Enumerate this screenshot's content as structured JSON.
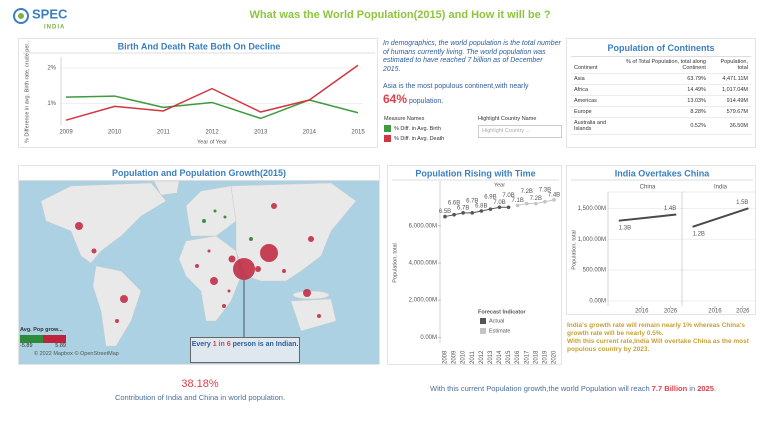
{
  "header": {
    "logo": {
      "name": "SPEC",
      "tagline": "INDIA"
    },
    "title": "What was the World Population(2015) and How it will be ?"
  },
  "chart_data": [
    {
      "type": "line",
      "title": "Birth  And Death Rate Both On Decline",
      "x_label": "Year of Year",
      "y_label": "% Difference in avg. Birth rate, crude per..",
      "categories": [
        "2009",
        "2010",
        "2011",
        "2012",
        "2013",
        "2014",
        "2015"
      ],
      "series": [
        {
          "name": "% Diff. in Avg. Birth",
          "color": "#3f9b3f",
          "values": [
            1.18,
            1.21,
            0.89,
            1.03,
            0.58,
            1.1,
            0.74
          ]
        },
        {
          "name": "% Diff. in Avg. Death",
          "color": "#d23640",
          "values": [
            0.53,
            0.92,
            0.79,
            1.42,
            0.76,
            1.1,
            2.08
          ]
        }
      ],
      "ylim": [
        0.45,
        2.2
      ],
      "yticks": [
        {
          "value": 1,
          "label": "1%"
        },
        {
          "value": 2,
          "label": "2%"
        }
      ],
      "grid": true,
      "legend_title": "Measure Names"
    },
    {
      "type": "line",
      "title": "Population Rising with Time",
      "x_header": "Year",
      "y_label": "Population, total",
      "categories": [
        "2008",
        "2009",
        "2010",
        "2011",
        "2012",
        "2013",
        "2014",
        "2015",
        "2016",
        "2017",
        "2018",
        "2019",
        "2020"
      ],
      "series": [
        {
          "name": "Actual",
          "color": "#555555",
          "values": [
            6500,
            6600,
            6700,
            6700,
            6800,
            6900,
            7000,
            7000,
            null,
            null,
            null,
            null,
            null
          ],
          "value_labels": [
            "6.5B",
            "6.6B",
            "6.7B",
            "6.7B",
            "6.8B",
            "6.9B",
            "7.0B",
            "7.0B",
            null,
            null,
            null,
            null,
            null
          ]
        },
        {
          "name": "Estimate",
          "color": "#c4c4c4",
          "values": [
            null,
            null,
            null,
            null,
            null,
            null,
            null,
            null,
            7100,
            7200,
            7200,
            7300,
            7400
          ],
          "value_labels": [
            null,
            null,
            null,
            null,
            null,
            null,
            null,
            null,
            "7.1B",
            "7.2B",
            "7.2B",
            "7.3B",
            "7.4B"
          ]
        }
      ],
      "ylim": [
        -200,
        8200
      ],
      "yticks": [
        {
          "value": 0,
          "label": "0.00M"
        },
        {
          "value": 2000,
          "label": "2,000.00M"
        },
        {
          "value": 4000,
          "label": "4,000.00M"
        },
        {
          "value": 6000,
          "label": "6,000.00M"
        }
      ],
      "grid": false,
      "legend_title": "Forecast Indicator"
    },
    {
      "type": "line",
      "title": "India Overtakes China",
      "y_label": "Population, total",
      "facet_by_series": true,
      "xlim": [
        2006,
        2030
      ],
      "xticks": [
        2016,
        2026
      ],
      "series": [
        {
          "name": "China",
          "color": "#4a4a4a",
          "x": [
            2008,
            2028
          ],
          "values": [
            1300,
            1400
          ],
          "value_labels": [
            "1.3B",
            "1.4B"
          ]
        },
        {
          "name": "India",
          "color": "#4a4a4a",
          "x": [
            2008,
            2028
          ],
          "values": [
            1200,
            1500
          ],
          "value_labels": [
            "1.2B",
            "1.5B"
          ]
        }
      ],
      "ylim": [
        -50,
        1700
      ],
      "yticks": [
        {
          "value": 0,
          "label": "0.00M"
        },
        {
          "value": 500,
          "label": "500.00M"
        },
        {
          "value": 1000,
          "label": "1,000.00M"
        },
        {
          "value": 1500,
          "label": "1,500.00M"
        }
      ],
      "grid": true
    }
  ],
  "text_panel": {
    "paragraph": "In demographics, the world population is the total number of humans currently living. The world population was estimated to have reached 7 billion as of December 2015.",
    "asia_line": "Asia is the most populous continent,with nearly",
    "asia_share": "64%",
    "asia_tail": "population.",
    "highlight_label": "Highlight Country Name",
    "highlight_placeholder": "Highlight Country ..."
  },
  "continents_table": {
    "title": "Population of Continents",
    "columns": [
      "Continent",
      "% of Total Population, total along Continent",
      "Population, total"
    ],
    "rows": [
      [
        "Asia",
        "63.79%",
        "4,471.11M"
      ],
      [
        "Africa",
        "14.49%",
        "1,017.04M"
      ],
      [
        "Americas",
        "13.03%",
        "914.49M"
      ],
      [
        "Europe",
        "8.28%",
        "579.67M"
      ],
      [
        "Australia and Islands",
        "0.52%",
        "36.50M"
      ]
    ]
  },
  "map": {
    "title": "Population and Population Growth(2015)",
    "legend_title": "Avg. Pop grow...",
    "legend_min": "-5.89",
    "legend_max": "5.89",
    "attribution": "© 2022 Mapbox © OpenStreetMap",
    "callout": {
      "before": "Every ",
      "highlight": "1 in 6",
      "after": " person is an Indian."
    }
  },
  "india_note": [
    "India's growth rate will remain nearly 1% whereas China's growth rate will be nearly 0.5%.",
    "With this current rate,India Will overtake China as the most populous country by 2023."
  ],
  "footer": {
    "share": "38.18%",
    "share_caption": "Contribution of India and China in world population.",
    "forecast": {
      "before": "With this current Population growth,the world Population will reach ",
      "amount": "7.7 Billion",
      "middle": " in ",
      "year": "2025",
      "after": "."
    }
  }
}
